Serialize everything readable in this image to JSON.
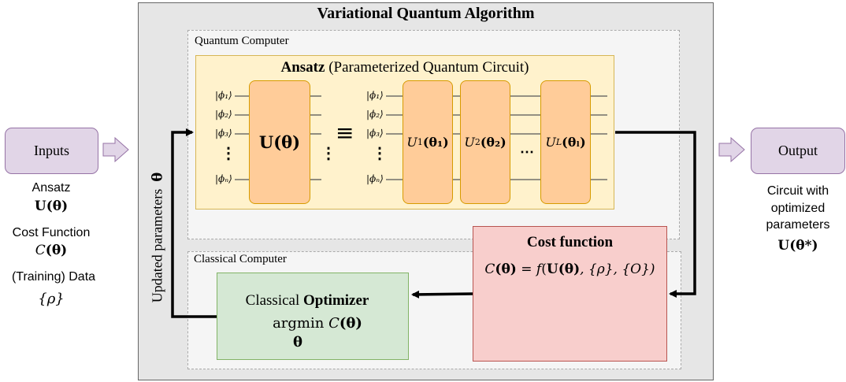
{
  "title": "Variational Quantum Algorithm",
  "quantum_computer": {
    "label": "Quantum Computer",
    "ansatz_bold": "Ansatz",
    "ansatz_rest": " (Parameterized Quantum Circuit)",
    "kets": [
      "|ϕ₁⟩",
      "|ϕ₂⟩",
      "|ϕ₃⟩",
      "|ϕₙ⟩"
    ],
    "vdots": "⋮",
    "equiv": "≡",
    "hdots": "⋯",
    "gate_main_sym": "U",
    "gate_main_arg": "(θ)",
    "gates": [
      {
        "sym": "U",
        "sub": "1",
        "arg": "(θ₁)"
      },
      {
        "sym": "U",
        "sub": "2",
        "arg": "(θ₂)"
      },
      {
        "sym": "U",
        "sub": "L",
        "arg": "(θₗ)"
      }
    ],
    "gate_last_arg_theta": "θ",
    "gate_last_arg_sub": "L"
  },
  "classical_computer": {
    "label": "Classical Computer",
    "optimizer_prefix": "Classical ",
    "optimizer_bold": "Optimizer",
    "argmin_word": "argmin ",
    "argmin_c": "C",
    "argmin_arg": "(θ)",
    "argmin_under": "θ"
  },
  "cost": {
    "title": "Cost function",
    "eq_lhs_c": "C",
    "eq_lhs_arg": "(θ)",
    "eq_eq": " = ",
    "eq_f": "f",
    "eq_open": "(",
    "eq_U": "U",
    "eq_Uarg": "(θ)",
    "eq_rest": ", {ρ}, {O})"
  },
  "inputs": {
    "label": "Inputs",
    "ansatz_label": "Ansatz",
    "ansatz_sym": "U",
    "ansatz_arg": "(θ)",
    "cost_label": "Cost Function",
    "cost_c": "C",
    "cost_arg": "(θ)",
    "data_label": "(Training) Data",
    "data_sym": "{ρ}"
  },
  "output": {
    "label": "Output",
    "line1": "Circuit with",
    "line2": "optimized",
    "line3": "parameters",
    "sym": "U",
    "arg": "(θ*)"
  },
  "feedback": {
    "label": "Updated parameters",
    "sym": "θ"
  },
  "colors": {
    "input_output_fill": "#e1d5e7",
    "ansatz_fill": "#fff2cc",
    "gate_fill": "#ffcc99",
    "cost_fill": "#f8cecc",
    "optimizer_fill": "#d5e8d4"
  }
}
